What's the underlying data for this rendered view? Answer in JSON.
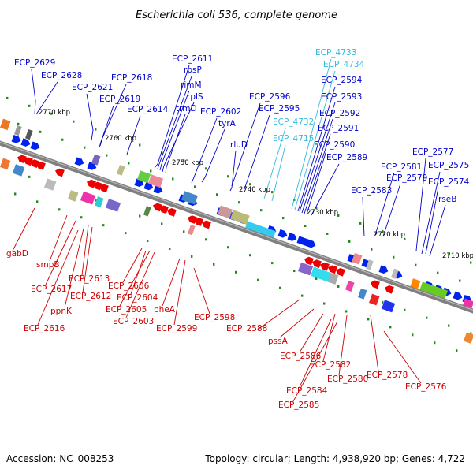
{
  "title": "Escherichia coli 536, complete genome",
  "footer": {
    "accession": "Accession: NC_008253",
    "topology": "Topology: circular; Length: 4,938,920 bp; Genes: 4,722"
  },
  "colors": {
    "forward_label": "#0000cc",
    "reverse_label": "#cc0000",
    "rna_label": "#33bbdd",
    "backbone": "#808080",
    "tick": "#228822",
    "forward_gene": "#0022ee",
    "reverse_gene": "#ee0000"
  },
  "ticks": [
    {
      "label": "2770 kbp"
    },
    {
      "label": "2760 kbp"
    },
    {
      "label": "2750 kbp"
    },
    {
      "label": "2740 kbp"
    },
    {
      "label": "2730 kbp"
    },
    {
      "label": "2720 kbp"
    },
    {
      "label": "2710 kbp"
    }
  ],
  "forward_labels": [
    {
      "text": "ECP_2629",
      "type": "cds"
    },
    {
      "text": "ECP_2628",
      "type": "cds"
    },
    {
      "text": "ECP_2621",
      "type": "cds"
    },
    {
      "text": "ECP_2618",
      "type": "cds"
    },
    {
      "text": "ECP_2619",
      "type": "cds"
    },
    {
      "text": "ECP_2614",
      "type": "cds"
    },
    {
      "text": "ECP_2611",
      "type": "cds"
    },
    {
      "text": "rpsP",
      "type": "cds"
    },
    {
      "text": "rimM",
      "type": "cds"
    },
    {
      "text": "rplS",
      "type": "cds"
    },
    {
      "text": "trmD",
      "type": "cds"
    },
    {
      "text": "ECP_2602",
      "type": "cds"
    },
    {
      "text": "tyrA",
      "type": "cds"
    },
    {
      "text": "rluD",
      "type": "cds"
    },
    {
      "text": "ECP_2596",
      "type": "cds"
    },
    {
      "text": "ECP_2595",
      "type": "cds"
    },
    {
      "text": "ECP_4732",
      "type": "rna"
    },
    {
      "text": "ECP_4715",
      "type": "rna"
    },
    {
      "text": "ECP_4733",
      "type": "rna"
    },
    {
      "text": "ECP_4734",
      "type": "rna"
    },
    {
      "text": "ECP_2594",
      "type": "cds"
    },
    {
      "text": "ECP_2593",
      "type": "cds"
    },
    {
      "text": "ECP_2592",
      "type": "cds"
    },
    {
      "text": "ECP_2591",
      "type": "cds"
    },
    {
      "text": "ECP_2590",
      "type": "cds"
    },
    {
      "text": "ECP_2589",
      "type": "cds"
    },
    {
      "text": "ECP_2583",
      "type": "cds"
    },
    {
      "text": "ECP_2581",
      "type": "cds"
    },
    {
      "text": "ECP_2579",
      "type": "cds"
    },
    {
      "text": "ECP_2577",
      "type": "cds"
    },
    {
      "text": "ECP_2575",
      "type": "cds"
    },
    {
      "text": "ECP_2574",
      "type": "cds"
    },
    {
      "text": "rseB",
      "type": "cds"
    }
  ],
  "reverse_labels": [
    {
      "text": "gabD"
    },
    {
      "text": "smpB"
    },
    {
      "text": "ECP_2617"
    },
    {
      "text": "ECP_2613"
    },
    {
      "text": "ECP_2612"
    },
    {
      "text": "ppnK"
    },
    {
      "text": "ECP_2616"
    },
    {
      "text": "ECP_2606"
    },
    {
      "text": "ECP_2604"
    },
    {
      "text": "ECP_2605"
    },
    {
      "text": "ECP_2603"
    },
    {
      "text": "pheA"
    },
    {
      "text": "ECP_2599"
    },
    {
      "text": "ECP_2598"
    },
    {
      "text": "ECP_2588"
    },
    {
      "text": "pssA"
    },
    {
      "text": "ECP_2586"
    },
    {
      "text": "ECP_2582"
    },
    {
      "text": "ECP_2580"
    },
    {
      "text": "ECP_2578"
    },
    {
      "text": "ECP_2576"
    },
    {
      "text": "ECP_2584"
    },
    {
      "text": "ECP_2585"
    }
  ]
}
